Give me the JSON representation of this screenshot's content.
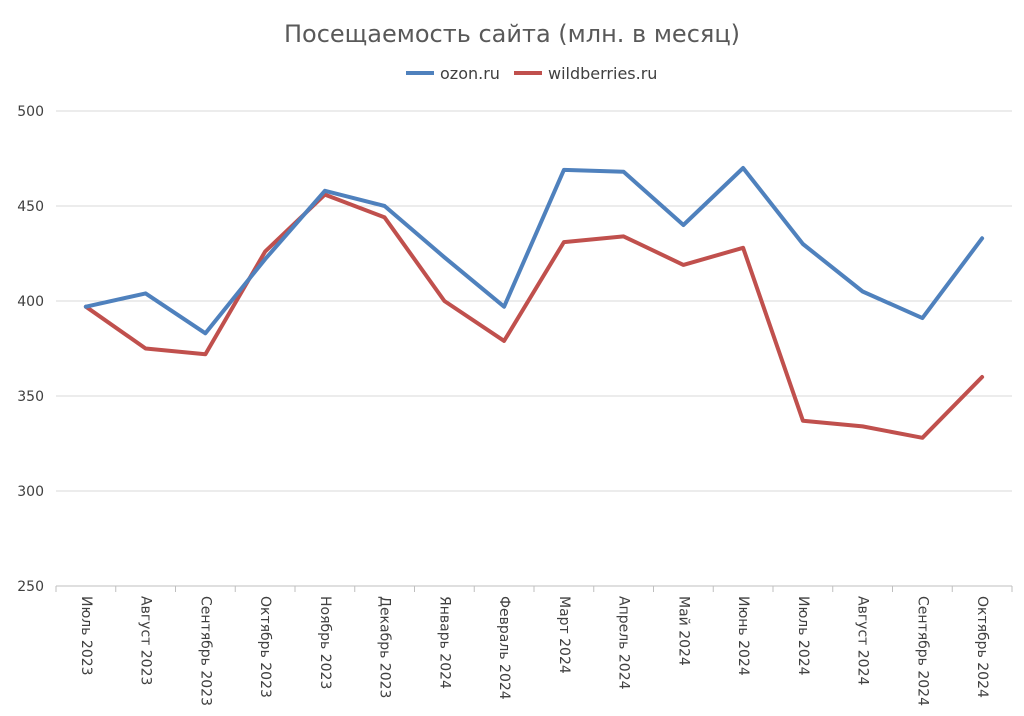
{
  "chart_data": {
    "type": "line",
    "title": "Посещаемость сайта (млн. в месяц)",
    "xlabel": "",
    "ylabel": "",
    "ylim": [
      250,
      500
    ],
    "yticks": [
      250,
      300,
      350,
      400,
      450,
      500
    ],
    "grid": true,
    "legend_position": "top",
    "categories": [
      "Июль 2023",
      "Август 2023",
      "Сентябрь 2023",
      "Октябрь 2023",
      "Ноябрь 2023",
      "Декабрь 2023",
      "Январь 2024",
      "Февраль 2024",
      "Март 2024",
      "Апрель 2024",
      "Май 2024",
      "Июнь 2024",
      "Июль 2024",
      "Август 2024",
      "Сентябрь 2024",
      "Октябрь 2024"
    ],
    "series": [
      {
        "name": "ozon.ru",
        "color": "#4f81bd",
        "values": [
          397,
          404,
          383,
          422,
          458,
          450,
          423,
          397,
          469,
          468,
          440,
          470,
          430,
          405,
          391,
          433
        ]
      },
      {
        "name": "wildberries.ru",
        "color": "#c0504d",
        "values": [
          397,
          375,
          372,
          426,
          456,
          444,
          400,
          379,
          431,
          434,
          419,
          428,
          337,
          334,
          328,
          360
        ]
      }
    ]
  }
}
